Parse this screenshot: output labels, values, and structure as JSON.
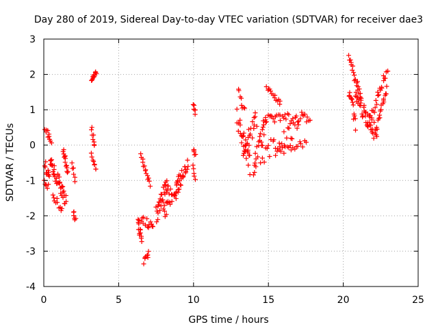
{
  "chart_data": {
    "type": "scatter",
    "title": "Day 280 of 2019, Sidereal Day-to-day VTEC variation (SDTVAR) for receiver dae3",
    "xlabel": "GPS time / hours",
    "ylabel": "SDTVAR / TECUs",
    "xlim": [
      0,
      25
    ],
    "ylim": [
      -4,
      3
    ],
    "x_ticks": [
      0,
      5,
      10,
      15,
      20,
      25
    ],
    "y_ticks": [
      -4,
      -3,
      -2,
      -1,
      0,
      1,
      2,
      3
    ],
    "x_tick_labels": [
      "0",
      "5",
      "10",
      "15",
      "20",
      "25"
    ],
    "y_tick_labels": [
      "-4",
      "-3",
      "-2",
      "-1",
      "0",
      "1",
      "2",
      "3"
    ],
    "grid": true,
    "marker": "+",
    "color": "#ff0000",
    "series": [
      {
        "name": "SDTVAR",
        "segments": [
          {
            "x0": 0.0,
            "y0": -0.5,
            "x1": 0.4,
            "y1": -0.9,
            "n": 12,
            "spread": 0.18
          },
          {
            "x0": 0.1,
            "y0": 0.45,
            "x1": 0.5,
            "y1": 0.0,
            "n": 10,
            "spread": 0.12
          },
          {
            "x0": 0.0,
            "y0": -1.0,
            "x1": 0.3,
            "y1": -1.2,
            "n": 6,
            "spread": 0.1
          },
          {
            "x0": 0.4,
            "y0": -0.4,
            "x1": 1.5,
            "y1": -1.6,
            "n": 38,
            "spread": 0.2
          },
          {
            "x0": 0.6,
            "y0": -1.4,
            "x1": 1.2,
            "y1": -1.8,
            "n": 10,
            "spread": 0.12
          },
          {
            "x0": 1.3,
            "y0": -0.15,
            "x1": 1.6,
            "y1": -0.8,
            "n": 14,
            "spread": 0.1
          },
          {
            "x0": 1.9,
            "y0": -0.5,
            "x1": 2.1,
            "y1": -1.0,
            "n": 6,
            "spread": 0.08
          },
          {
            "x0": 2.0,
            "y0": -1.85,
            "x1": 2.1,
            "y1": -2.1,
            "n": 6,
            "spread": 0.08
          },
          {
            "x0": 3.2,
            "y0": 1.85,
            "x1": 3.5,
            "y1": 2.05,
            "n": 12,
            "spread": 0.06
          },
          {
            "x0": 3.2,
            "y0": 0.5,
            "x1": 3.4,
            "y1": 0.0,
            "n": 8,
            "spread": 0.08
          },
          {
            "x0": 3.2,
            "y0": -0.3,
            "x1": 3.5,
            "y1": -0.7,
            "n": 8,
            "spread": 0.1
          },
          {
            "x0": 6.3,
            "y0": -2.1,
            "x1": 6.5,
            "y1": -2.7,
            "n": 14,
            "spread": 0.12
          },
          {
            "x0": 6.5,
            "y0": -2.1,
            "x1": 7.3,
            "y1": -2.3,
            "n": 14,
            "spread": 0.12
          },
          {
            "x0": 6.5,
            "y0": -0.3,
            "x1": 7.1,
            "y1": -1.1,
            "n": 14,
            "spread": 0.08
          },
          {
            "x0": 6.7,
            "y0": -3.3,
            "x1": 7.0,
            "y1": -3.05,
            "n": 8,
            "spread": 0.06
          },
          {
            "x0": 7.5,
            "y0": -2.0,
            "x1": 8.3,
            "y1": -1.0,
            "n": 30,
            "spread": 0.25
          },
          {
            "x0": 8.0,
            "y0": -1.9,
            "x1": 9.0,
            "y1": -1.0,
            "n": 24,
            "spread": 0.25
          },
          {
            "x0": 8.8,
            "y0": -1.3,
            "x1": 9.6,
            "y1": -0.4,
            "n": 26,
            "spread": 0.22
          },
          {
            "x0": 10.0,
            "y0": 1.15,
            "x1": 10.1,
            "y1": 0.9,
            "n": 6,
            "spread": 0.06
          },
          {
            "x0": 10.0,
            "y0": -0.1,
            "x1": 10.1,
            "y1": -0.25,
            "n": 6,
            "spread": 0.06
          },
          {
            "x0": 10.0,
            "y0": -0.6,
            "x1": 10.1,
            "y1": -0.95,
            "n": 5,
            "spread": 0.06
          },
          {
            "x0": 12.9,
            "y0": 0.8,
            "x1": 13.8,
            "y1": -0.6,
            "n": 26,
            "spread": 0.3
          },
          {
            "x0": 13.0,
            "y0": 1.55,
            "x1": 13.4,
            "y1": 1.0,
            "n": 8,
            "spread": 0.12
          },
          {
            "x0": 13.3,
            "y0": -0.3,
            "x1": 14.2,
            "y1": 0.8,
            "n": 22,
            "spread": 0.3
          },
          {
            "x0": 14.0,
            "y0": -0.6,
            "x1": 14.8,
            "y1": 0.6,
            "n": 24,
            "spread": 0.3
          },
          {
            "x0": 14.9,
            "y0": 1.6,
            "x1": 15.8,
            "y1": 1.2,
            "n": 14,
            "spread": 0.08
          },
          {
            "x0": 14.8,
            "y0": 0.7,
            "x1": 17.8,
            "y1": 0.8,
            "n": 36,
            "spread": 0.15
          },
          {
            "x0": 14.5,
            "y0": -0.3,
            "x1": 17.0,
            "y1": 0.5,
            "n": 26,
            "spread": 0.25
          },
          {
            "x0": 15.5,
            "y0": -0.2,
            "x1": 17.5,
            "y1": 0.05,
            "n": 20,
            "spread": 0.1
          },
          {
            "x0": 20.4,
            "y0": 2.4,
            "x1": 21.2,
            "y1": 1.4,
            "n": 22,
            "spread": 0.15
          },
          {
            "x0": 20.4,
            "y0": 1.6,
            "x1": 20.8,
            "y1": 0.6,
            "n": 14,
            "spread": 0.2
          },
          {
            "x0": 20.8,
            "y0": 1.4,
            "x1": 22.2,
            "y1": 0.3,
            "n": 40,
            "spread": 0.25
          },
          {
            "x0": 21.6,
            "y0": 0.5,
            "x1": 23.0,
            "y1": 2.2,
            "n": 26,
            "spread": 0.12
          },
          {
            "x0": 22.2,
            "y0": 0.4,
            "x1": 22.9,
            "y1": 1.6,
            "n": 18,
            "spread": 0.1
          }
        ]
      }
    ]
  }
}
